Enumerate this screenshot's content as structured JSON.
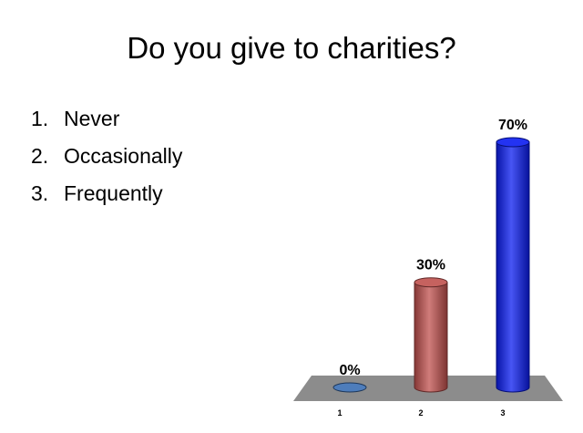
{
  "title": "Do you give to charities?",
  "options": [
    {
      "num": "1.",
      "text": "Never"
    },
    {
      "num": "2.",
      "text": "Occasionally"
    },
    {
      "num": "3.",
      "text": "Frequently"
    }
  ],
  "chart_data": {
    "type": "bar",
    "categories": [
      "1",
      "2",
      "3"
    ],
    "values": [
      0,
      30,
      70
    ],
    "data_labels": [
      "0%",
      "30%",
      "70%"
    ],
    "ylim": [
      0,
      70
    ],
    "grid": false,
    "colors": [
      "#3a6eb3",
      "#c0504d",
      "#0a1cf0"
    ],
    "floor_color": "#8c8c8c"
  }
}
